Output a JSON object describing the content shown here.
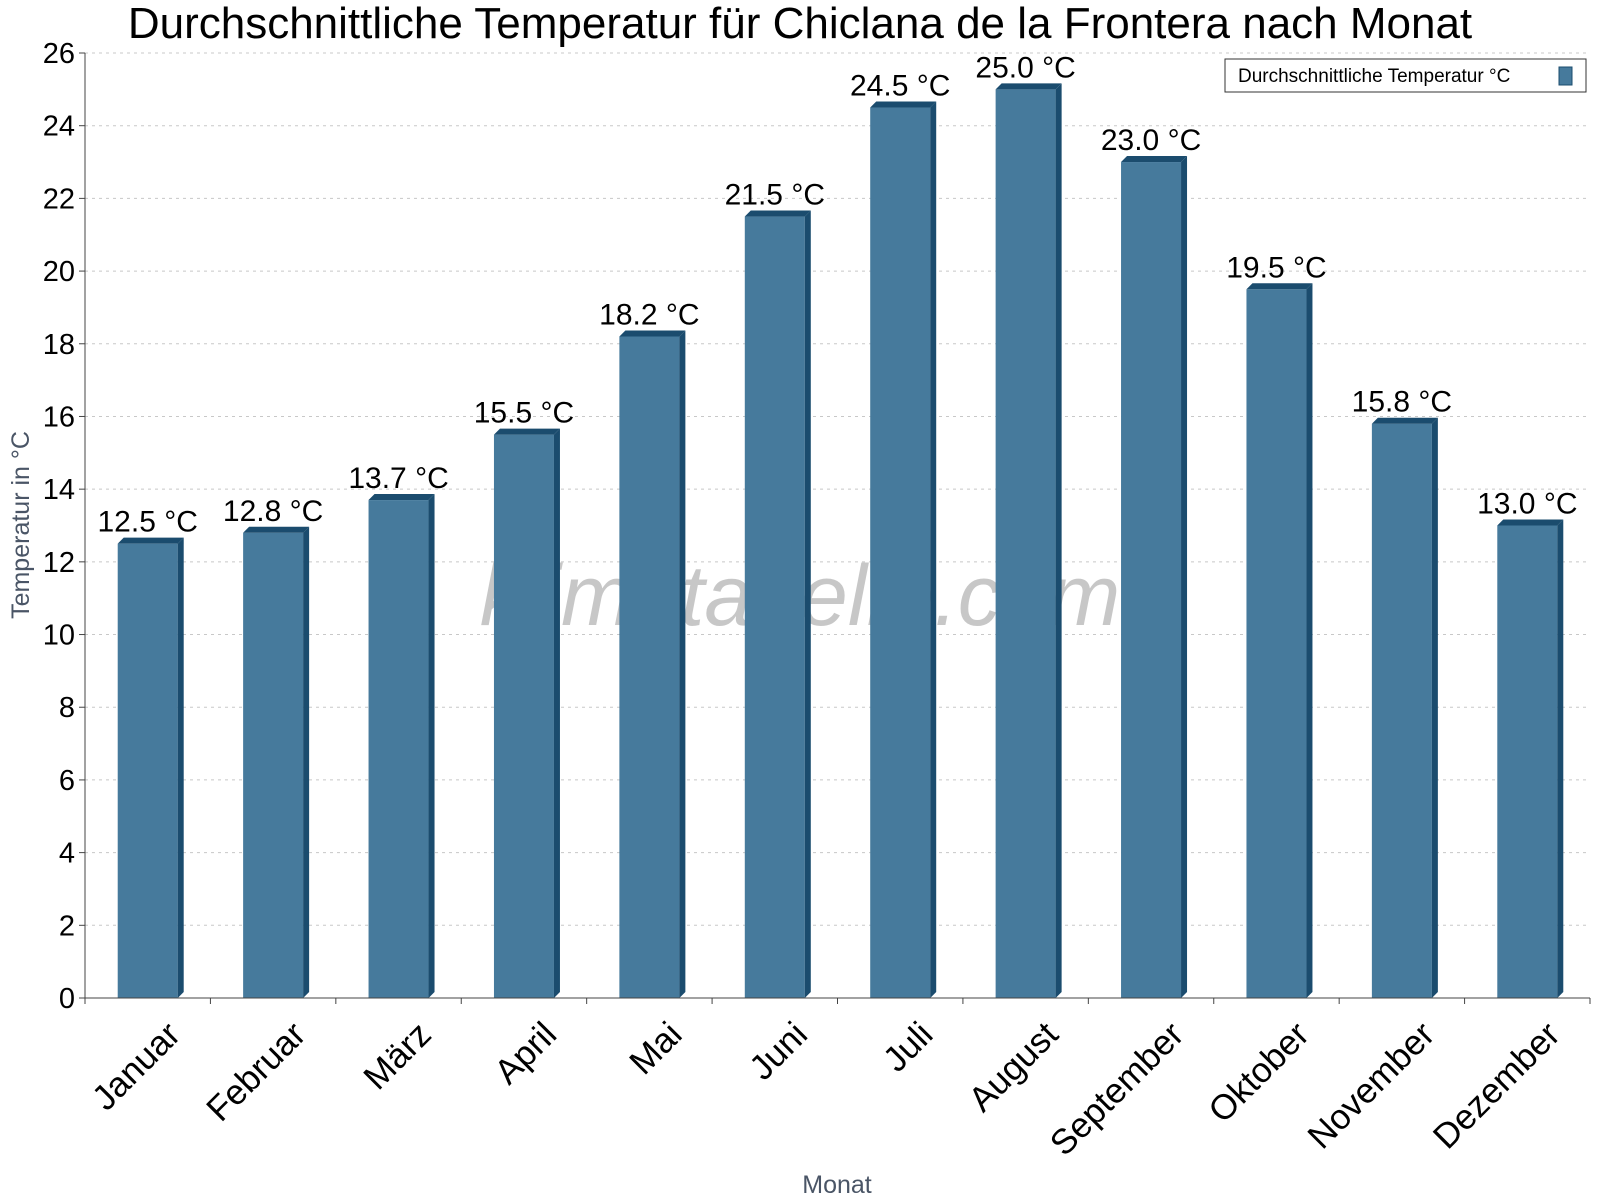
{
  "chart_data": {
    "type": "bar",
    "title": "Durchschnittliche Temperatur für Chiclana de la Frontera nach Monat",
    "xlabel": "Monat",
    "ylabel": "Temperatur in °C",
    "ylim": [
      0,
      26
    ],
    "ytick_step": 2,
    "grid": true,
    "legend_position": "top-right",
    "watermark": "klimatabelle.com",
    "categories": [
      "Januar",
      "Februar",
      "März",
      "April",
      "Mai",
      "Juni",
      "Juli",
      "August",
      "September",
      "Oktober",
      "November",
      "Dezember"
    ],
    "series": [
      {
        "name": "Durchschnittliche Temperatur °C",
        "color": "#467a9c",
        "side_color": "#1b4c6e",
        "values": [
          12.5,
          12.8,
          13.7,
          15.5,
          18.2,
          21.5,
          24.5,
          25.0,
          23.0,
          19.5,
          15.8,
          13.0
        ],
        "labels": [
          "12.5 °C",
          "12.8 °C",
          "13.7 °C",
          "15.5 °C",
          "18.2 °C",
          "21.5 °C",
          "24.5 °C",
          "25.0 °C",
          "23.0 °C",
          "19.5 °C",
          "15.8 °C",
          "13.0 °C"
        ]
      }
    ]
  }
}
